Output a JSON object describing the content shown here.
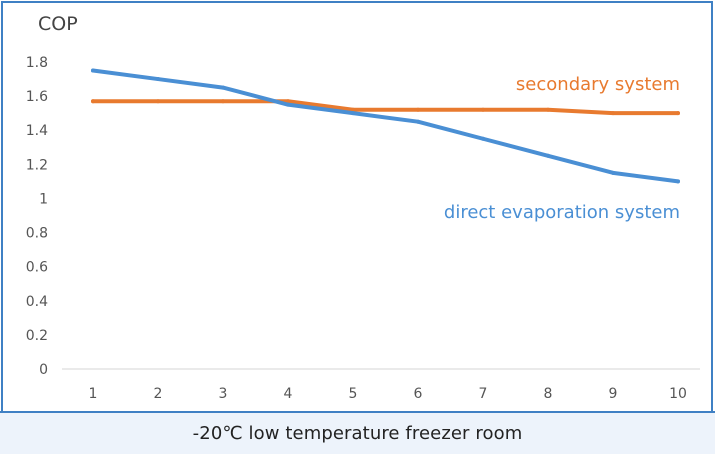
{
  "chart_data": {
    "type": "line",
    "title": "",
    "xlabel": "",
    "ylabel": "COP",
    "x": [
      1,
      2,
      3,
      4,
      5,
      6,
      7,
      8,
      9,
      10
    ],
    "xlim": [
      1,
      10
    ],
    "ylim": [
      0,
      1.8
    ],
    "yticks": [
      0,
      0.2,
      0.4,
      0.6,
      0.8,
      1,
      1.2,
      1.4,
      1.6,
      1.8
    ],
    "grid": false,
    "series": [
      {
        "name": "secondary system",
        "color": "#e87a2f",
        "values": [
          1.57,
          1.57,
          1.57,
          1.57,
          1.52,
          1.52,
          1.52,
          1.52,
          1.5,
          1.5
        ]
      },
      {
        "name": "direct evaporation system",
        "color": "#4a8fd4",
        "values": [
          1.75,
          1.7,
          1.65,
          1.55,
          1.5,
          1.45,
          1.35,
          1.25,
          1.15,
          1.1
        ]
      }
    ]
  },
  "caption": "-20℃ low temperature freezer room"
}
